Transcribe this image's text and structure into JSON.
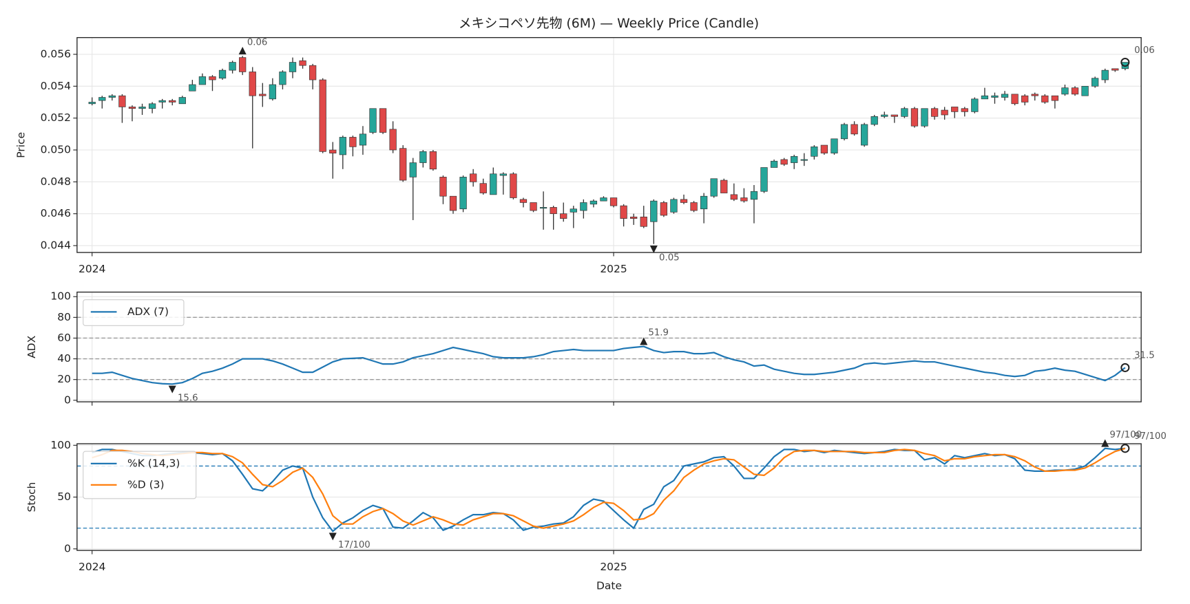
{
  "chart_data": [
    {
      "type": "candle",
      "title": "メキシコペソ先物 (6M) — Weekly Price (Candle)",
      "y_label": "Price",
      "categories": [
        null,
        null,
        null,
        null,
        null,
        null,
        null,
        null,
        null,
        null,
        null,
        null,
        null,
        null,
        null,
        null,
        null,
        null,
        null,
        null,
        null,
        null,
        null,
        null,
        null,
        null,
        null,
        null,
        null,
        null,
        null,
        null,
        null,
        null,
        null,
        null,
        null,
        null,
        null,
        null,
        null,
        null,
        null,
        null,
        null,
        null,
        null,
        null,
        null,
        null,
        null,
        null,
        null,
        null,
        null,
        null,
        null,
        null,
        null,
        null,
        null,
        null,
        null,
        null,
        null,
        null,
        null,
        null,
        null,
        null,
        null,
        null,
        null,
        null,
        null,
        null,
        null,
        null,
        null,
        null,
        null,
        null,
        null,
        null,
        null,
        null,
        null,
        null,
        null,
        null,
        null,
        null,
        null,
        null,
        null,
        null,
        null,
        null,
        null,
        null,
        null,
        null,
        null,
        null
      ],
      "xticks": [
        {
          "value": 0,
          "label": "2024"
        },
        {
          "value": 52,
          "label": "2025"
        }
      ],
      "show_xtick_labels": true,
      "open": [
        0.0529,
        0.0531,
        0.0533,
        0.0534,
        0.0527,
        0.0526,
        0.0526,
        0.053,
        0.0531,
        0.0529,
        0.0537,
        0.0541,
        0.0546,
        0.0545,
        0.055,
        0.0558,
        0.0549,
        0.0535,
        0.0532,
        0.0541,
        0.0549,
        0.0556,
        0.0553,
        0.0544,
        0.05,
        0.0497,
        0.0508,
        0.0503,
        0.0511,
        0.0526,
        0.0513,
        0.0501,
        0.0483,
        0.0492,
        0.0499,
        0.0483,
        0.0471,
        0.0463,
        0.0485,
        0.0479,
        0.0472,
        0.0484,
        0.0485,
        0.0469,
        0.0467,
        0.0464,
        0.0464,
        0.046,
        0.0461,
        0.0462,
        0.0466,
        0.0468,
        0.047,
        0.0465,
        0.0458,
        0.0458,
        0.0455,
        0.0467,
        0.0461,
        0.0469,
        0.0467,
        0.0463,
        0.0471,
        0.0481,
        0.0472,
        0.047,
        0.0469,
        0.0474,
        0.0489,
        0.0494,
        0.0492,
        0.0494,
        0.0496,
        0.0503,
        0.0498,
        0.0507,
        0.0516,
        0.0503,
        0.0516,
        0.0521,
        0.0522,
        0.0521,
        0.0526,
        0.0515,
        0.0526,
        0.0525,
        0.0527,
        0.0526,
        0.0524,
        0.0532,
        0.0533,
        0.0533,
        0.0535,
        0.0534,
        0.0535,
        0.0534,
        0.0534,
        0.0535,
        0.0539,
        0.0534,
        0.054,
        0.0544,
        0.0551,
        0.0551
      ],
      "high": [
        0.0533,
        0.0534,
        0.0535,
        0.0535,
        0.0528,
        0.0529,
        0.053,
        0.0532,
        0.0532,
        0.0534,
        0.0544,
        0.0548,
        0.0547,
        0.0551,
        0.0556,
        0.0559,
        0.0552,
        0.0542,
        0.0545,
        0.055,
        0.0558,
        0.0558,
        0.0554,
        0.0545,
        0.0505,
        0.0509,
        0.0509,
        0.0515,
        0.0526,
        0.0526,
        0.0518,
        0.0503,
        0.0495,
        0.05,
        0.05,
        0.0484,
        0.0471,
        0.0484,
        0.0488,
        0.0482,
        0.0489,
        0.0486,
        0.0486,
        0.047,
        0.0467,
        0.0474,
        0.0465,
        0.0467,
        0.0465,
        0.0469,
        0.0469,
        0.0471,
        0.047,
        0.0466,
        0.046,
        0.0465,
        0.0469,
        0.0468,
        0.047,
        0.0472,
        0.0468,
        0.0473,
        0.0482,
        0.0482,
        0.0479,
        0.0476,
        0.0478,
        0.0489,
        0.0494,
        0.0495,
        0.0497,
        0.0498,
        0.0503,
        0.0503,
        0.0507,
        0.0517,
        0.0518,
        0.0517,
        0.0522,
        0.0524,
        0.0522,
        0.0527,
        0.0527,
        0.0526,
        0.0527,
        0.0527,
        0.0527,
        0.0527,
        0.0533,
        0.0539,
        0.0536,
        0.0537,
        0.0535,
        0.0535,
        0.0536,
        0.0535,
        0.0534,
        0.0541,
        0.054,
        0.054,
        0.0546,
        0.0551,
        0.0551,
        0.0555
      ],
      "low": [
        0.0528,
        0.0526,
        0.0531,
        0.0517,
        0.0518,
        0.0522,
        0.0523,
        0.0526,
        0.0528,
        0.0529,
        0.0537,
        0.0541,
        0.0537,
        0.0544,
        0.0548,
        0.0547,
        0.0501,
        0.0527,
        0.0531,
        0.0538,
        0.0545,
        0.0551,
        0.0538,
        0.0498,
        0.0482,
        0.0488,
        0.0496,
        0.0497,
        0.051,
        0.051,
        0.0498,
        0.048,
        0.0456,
        0.0489,
        0.0487,
        0.0466,
        0.046,
        0.0461,
        0.0477,
        0.0472,
        0.0472,
        0.0472,
        0.0469,
        0.0464,
        0.0461,
        0.045,
        0.045,
        0.0455,
        0.0451,
        0.0457,
        0.0464,
        0.0468,
        0.0464,
        0.0452,
        0.0453,
        0.0451,
        0.0441,
        0.0458,
        0.046,
        0.0466,
        0.0461,
        0.0454,
        0.047,
        0.0473,
        0.0468,
        0.0467,
        0.0454,
        0.0473,
        0.0489,
        0.049,
        0.0488,
        0.049,
        0.0494,
        0.0497,
        0.0497,
        0.0506,
        0.0509,
        0.0502,
        0.0515,
        0.052,
        0.0517,
        0.052,
        0.0514,
        0.0514,
        0.0519,
        0.0519,
        0.052,
        0.0521,
        0.0523,
        0.0532,
        0.0529,
        0.0531,
        0.0528,
        0.0528,
        0.0531,
        0.0529,
        0.0526,
        0.0534,
        0.0534,
        0.0534,
        0.0539,
        0.0542,
        0.0549,
        0.055
      ],
      "close": [
        0.053,
        0.0533,
        0.0534,
        0.0527,
        0.0526,
        0.0527,
        0.0529,
        0.0531,
        0.053,
        0.0533,
        0.0541,
        0.0546,
        0.0544,
        0.055,
        0.0555,
        0.0549,
        0.0534,
        0.0534,
        0.0541,
        0.0549,
        0.0555,
        0.0553,
        0.0544,
        0.0499,
        0.0498,
        0.0508,
        0.0502,
        0.051,
        0.0526,
        0.0511,
        0.05,
        0.0481,
        0.0492,
        0.0499,
        0.0488,
        0.0471,
        0.0462,
        0.0483,
        0.048,
        0.0473,
        0.0485,
        0.0485,
        0.047,
        0.0467,
        0.0462,
        0.0464,
        0.046,
        0.0457,
        0.0463,
        0.0467,
        0.0468,
        0.047,
        0.0465,
        0.0457,
        0.0457,
        0.0452,
        0.0468,
        0.0459,
        0.0469,
        0.0467,
        0.0462,
        0.0471,
        0.0482,
        0.0473,
        0.0469,
        0.0468,
        0.0474,
        0.0489,
        0.0493,
        0.0491,
        0.0496,
        0.0494,
        0.0502,
        0.0498,
        0.0507,
        0.0516,
        0.051,
        0.0516,
        0.0521,
        0.0522,
        0.0521,
        0.0526,
        0.0515,
        0.0526,
        0.0521,
        0.0522,
        0.0524,
        0.0524,
        0.0532,
        0.0534,
        0.0534,
        0.0535,
        0.0529,
        0.053,
        0.0534,
        0.053,
        0.0531,
        0.0539,
        0.0535,
        0.054,
        0.0545,
        0.055,
        0.055,
        0.0555
      ],
      "up_color": "#26a69a",
      "down_color": "#e04848",
      "ylim": [
        0.04357,
        0.05705
      ],
      "yticks": [
        0.044,
        0.046,
        0.048,
        {
          "value": 0.05,
          "label": "0.050"
        },
        0.052,
        0.054,
        0.056
      ],
      "grid": true,
      "annotations": {
        "max": "0.06",
        "min": "0.05",
        "last": "0.06"
      }
    },
    {
      "type": "line",
      "y_label": "ADX",
      "show_xtick_labels": false,
      "series": [
        {
          "name": "ADX (7)",
          "color": "#1f77b4",
          "values": [
            26,
            26,
            27,
            24,
            21,
            19,
            17,
            16,
            15.6,
            17,
            21,
            26,
            28,
            31,
            35,
            40,
            40,
            40,
            38,
            35,
            31,
            27,
            27,
            32,
            37,
            40,
            40.5,
            41,
            38,
            35,
            35,
            37,
            41,
            43,
            45,
            48,
            51,
            49,
            47,
            45,
            42,
            41,
            41,
            41,
            42,
            44,
            47,
            48,
            49,
            48,
            48,
            48,
            48,
            50,
            51,
            51.9,
            48,
            46,
            47,
            47,
            45,
            45,
            46,
            42,
            39,
            37,
            33,
            34,
            30,
            28,
            26,
            25,
            25,
            26,
            27,
            29,
            31,
            35,
            36,
            35,
            36,
            37,
            38,
            37,
            37,
            35,
            33,
            31,
            29,
            27,
            26,
            24,
            23,
            24,
            28,
            29,
            31,
            29,
            28,
            25,
            22,
            19,
            24,
            31.5
          ]
        }
      ],
      "ylim": [
        -1.5,
        104.4
      ],
      "yticks": [
        0,
        20,
        40,
        60,
        80,
        100
      ],
      "grid": true,
      "levels": [
        20,
        40,
        60,
        80
      ],
      "level_color": "#999999",
      "legend": "upper left",
      "annotations": {
        "max": "51.9",
        "min": "15.6",
        "last": "31.5"
      }
    },
    {
      "type": "line",
      "y_label": "Stoch",
      "x_label": "Date",
      "show_xtick_labels": true,
      "series": [
        {
          "name": "%K (14,3)",
          "color": "#1f77b4",
          "values": [
            93,
            96,
            96,
            94,
            92,
            90,
            90,
            91,
            92,
            93,
            93,
            92,
            91,
            92,
            85,
            72,
            58,
            56,
            65,
            76,
            80,
            78,
            50,
            30,
            17,
            25,
            30,
            37,
            42,
            39,
            21,
            20,
            27,
            35,
            30,
            18,
            22,
            28,
            33,
            33,
            35,
            34,
            28,
            18,
            21,
            22,
            24,
            25,
            31,
            42,
            48,
            46,
            37,
            28,
            20,
            38,
            43,
            60,
            66,
            80,
            82,
            84,
            88,
            89,
            80,
            68,
            68,
            78,
            89,
            96,
            96,
            94,
            95,
            93,
            95,
            94,
            93,
            92,
            93,
            94,
            96,
            95,
            95,
            86,
            88,
            82,
            90,
            88,
            90,
            92,
            90,
            91,
            87,
            76,
            75,
            75,
            76,
            76,
            77,
            80,
            88,
            97,
            96,
            97
          ]
        },
        {
          "name": "%D (3)",
          "color": "#ff7f0e",
          "values": [
            88,
            91,
            95,
            95,
            94,
            92,
            91,
            90,
            91,
            92,
            93,
            93,
            92,
            92,
            89,
            83,
            72,
            62,
            60,
            66,
            74,
            78,
            69,
            53,
            32,
            24,
            24,
            31,
            36,
            39,
            34,
            27,
            23,
            27,
            31,
            28,
            24,
            23,
            28,
            31,
            34,
            34,
            32,
            27,
            22,
            20,
            22,
            24,
            27,
            33,
            40,
            45,
            44,
            37,
            28,
            29,
            34,
            47,
            56,
            69,
            76,
            82,
            85,
            87,
            86,
            79,
            72,
            71,
            78,
            88,
            94,
            95,
            95,
            94,
            94,
            94,
            94,
            93,
            93,
            93,
            95,
            96,
            95,
            92,
            90,
            85,
            87,
            87,
            89,
            90,
            91,
            91,
            89,
            85,
            79,
            75,
            75,
            76,
            76,
            78,
            83,
            89,
            94,
            97
          ]
        }
      ],
      "ylim": [
        -1.5,
        101.5
      ],
      "yticks": [
        0,
        50,
        100
      ],
      "grid": true,
      "levels": [
        20,
        80
      ],
      "level_color": "#1f77b4",
      "legend": "upper left",
      "annotations": {
        "max": "97/100",
        "min": "17/100",
        "last": "97/100"
      }
    }
  ]
}
